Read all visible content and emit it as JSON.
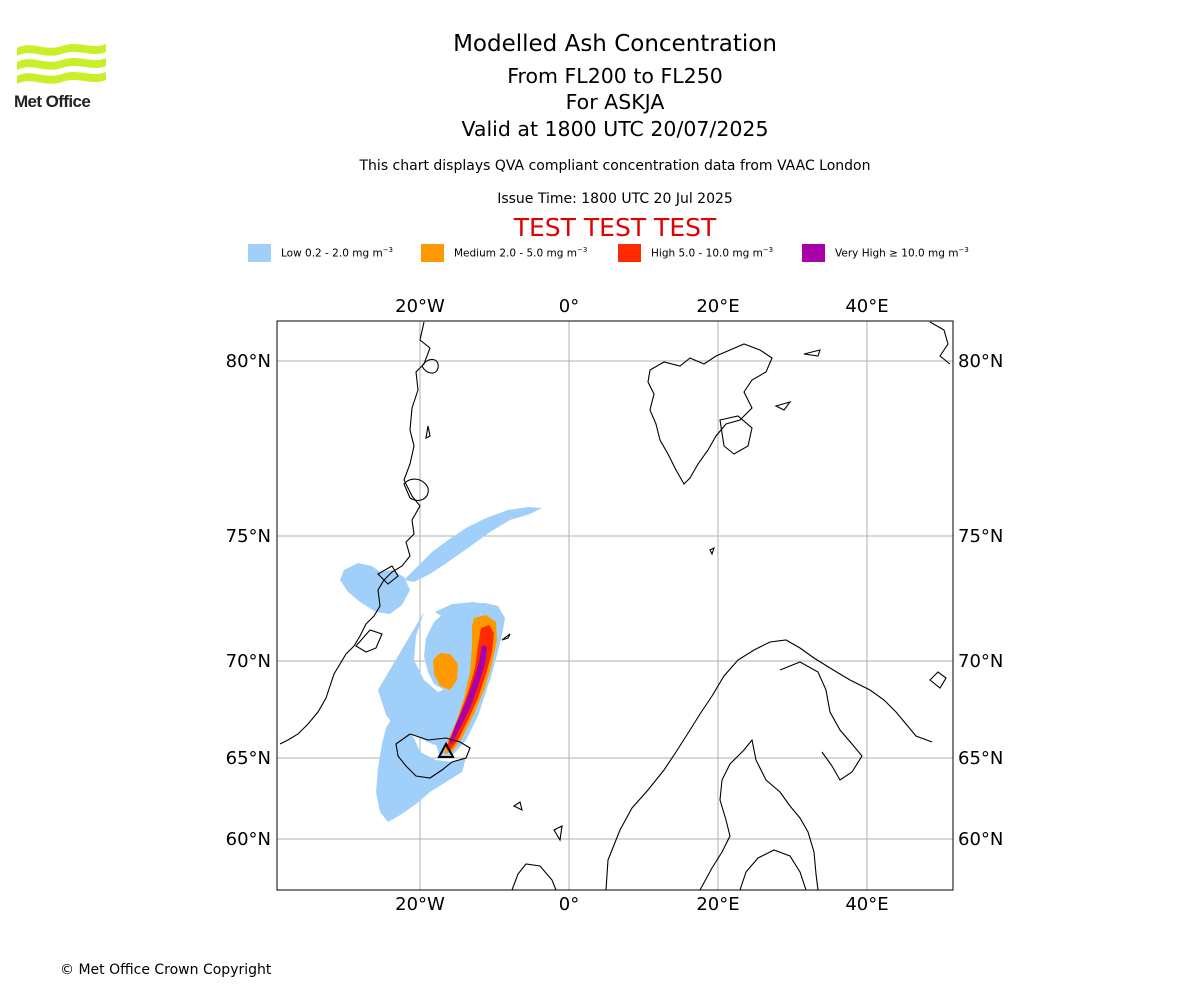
{
  "header": {
    "logo_text": "Met Office",
    "title": "Modelled Ash Concentration",
    "subtitle_levels": "From FL200 to FL250",
    "subtitle_volcano": "For ASKJA",
    "subtitle_valid": "Valid at 1800 UTC 20/07/2025",
    "description": "This chart displays QVA compliant concentration data from VAAC London",
    "issue_time": "Issue Time: 1800 UTC 20 Jul 2025",
    "test_banner": "TEST TEST TEST"
  },
  "legend": [
    {
      "label": "Low 0.2 - 2.0 mg m",
      "exp": "−3",
      "color": "#a0d0fa"
    },
    {
      "label": "Medium 2.0 - 5.0 mg m",
      "exp": "−3",
      "color": "#ff9900"
    },
    {
      "label": "High 5.0 - 10.0 mg m",
      "exp": "−3",
      "color": "#ff2a00"
    },
    {
      "label": "Very High  ≥  10.0 mg m",
      "exp": "−3",
      "color": "#aa00aa"
    }
  ],
  "map": {
    "lon_ticks": [
      "20°W",
      "0°",
      "20°E",
      "40°E"
    ],
    "lat_ticks": [
      "80°N",
      "75°N",
      "70°N",
      "65°N",
      "60°N"
    ],
    "volcano_icon": "triangle-marker-icon"
  },
  "footer": {
    "copyright": "© Met Office Crown Copyright"
  }
}
